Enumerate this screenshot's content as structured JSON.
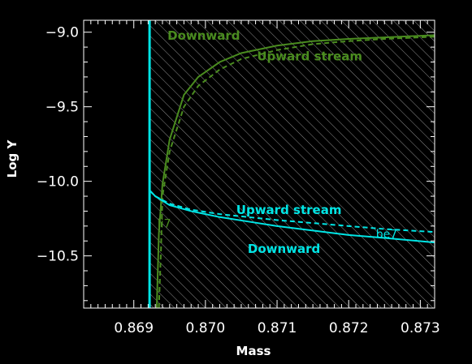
{
  "chart_data": {
    "type": "line",
    "xlabel": "Mass",
    "ylabel": "Log Y",
    "xlim": [
      0.8683,
      0.8732
    ],
    "ylim": [
      -10.85,
      -8.92
    ],
    "x_ticks": [
      0.869,
      0.87,
      0.871,
      0.872,
      0.873
    ],
    "x_tick_labels": [
      "0.869",
      "0.870",
      "0.871",
      "0.872",
      "0.873"
    ],
    "y_ticks": [
      -9.0,
      -9.5,
      -10.0,
      -10.5
    ],
    "y_tick_labels": [
      "−9.0",
      "−9.5",
      "−10.0",
      "−10.5"
    ],
    "hatched_region_x_start": 0.86922,
    "boundary_x": 0.86922,
    "boundary_color": "#00e5e5",
    "series": [
      {
        "name": "Downward",
        "group": "li7",
        "color": "#4a8c1f",
        "style": "solid",
        "x": [
          0.86932,
          0.86935,
          0.8694,
          0.8695,
          0.8697,
          0.8699,
          0.8702,
          0.8705,
          0.871,
          0.8715,
          0.872,
          0.8725,
          0.8732
        ],
        "y": [
          -10.85,
          -10.35,
          -10.02,
          -9.72,
          -9.42,
          -9.3,
          -9.2,
          -9.14,
          -9.09,
          -9.06,
          -9.045,
          -9.035,
          -9.02
        ]
      },
      {
        "name": "Upward stream",
        "group": "li7",
        "color": "#4a8c1f",
        "style": "dashed",
        "x": [
          0.86935,
          0.86938,
          0.8694,
          0.8695,
          0.8697,
          0.8699,
          0.8702,
          0.8705,
          0.871,
          0.8715,
          0.872,
          0.8725,
          0.8732
        ],
        "y": [
          -10.85,
          -10.45,
          -10.1,
          -9.8,
          -9.5,
          -9.36,
          -9.25,
          -9.18,
          -9.12,
          -9.08,
          -9.06,
          -9.045,
          -9.03
        ]
      },
      {
        "name": "Upward stream",
        "group": "be7",
        "color": "#00e5e5",
        "style": "dashed",
        "x": [
          0.86922,
          0.8693,
          0.8695,
          0.8698,
          0.8702,
          0.8706,
          0.871,
          0.8715,
          0.872,
          0.8725,
          0.8732
        ],
        "y": [
          -10.06,
          -10.1,
          -10.15,
          -10.19,
          -10.22,
          -10.24,
          -10.26,
          -10.28,
          -10.3,
          -10.32,
          -10.34
        ]
      },
      {
        "name": "Downward",
        "group": "be7",
        "color": "#00e5e5",
        "style": "solid",
        "x": [
          0.86922,
          0.8693,
          0.8695,
          0.8698,
          0.8702,
          0.8706,
          0.871,
          0.8715,
          0.872,
          0.8725,
          0.8732
        ],
        "y": [
          -10.06,
          -10.1,
          -10.16,
          -10.2,
          -10.24,
          -10.27,
          -10.3,
          -10.33,
          -10.36,
          -10.38,
          -10.41
        ]
      }
    ],
    "annotations": [
      {
        "text": "Downward",
        "x": 0.86947,
        "y": -9.05,
        "color": "#4a8c1f",
        "weight": "bold"
      },
      {
        "text": "Upward stream",
        "x": 0.87072,
        "y": -9.19,
        "color": "#4a8c1f",
        "weight": "bold"
      },
      {
        "text": "li7",
        "x": 0.86933,
        "y": -10.31,
        "color": "#4a8c1f",
        "weight": "normal"
      },
      {
        "text": "Upward stream",
        "x": 0.87043,
        "y": -10.22,
        "color": "#00e5e5",
        "weight": "bold"
      },
      {
        "text": "be7",
        "x": 0.87238,
        "y": -10.38,
        "color": "#00e5e5",
        "weight": "normal"
      },
      {
        "text": "Downward",
        "x": 0.87059,
        "y": -10.48,
        "color": "#00e5e5",
        "weight": "bold"
      }
    ],
    "grid": false,
    "axis_color": "#ffffff",
    "background": "#000000"
  }
}
